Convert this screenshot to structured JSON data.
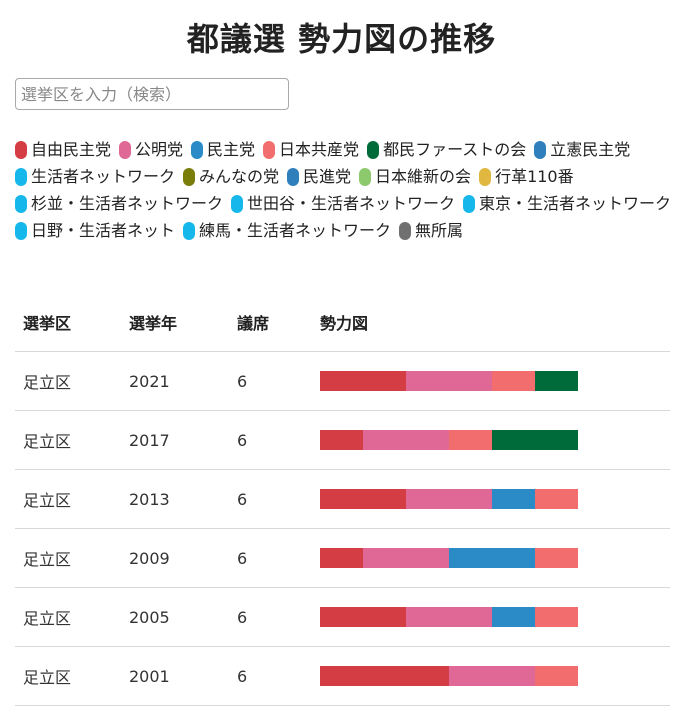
{
  "page": {
    "title": "都議選 勢力図の推移"
  },
  "search": {
    "placeholder": "選挙区を入力（検索）"
  },
  "legend": [
    {
      "name": "自由民主党",
      "color": "#d43d44"
    },
    {
      "name": "公明党",
      "color": "#e06897"
    },
    {
      "name": "民主党",
      "color": "#2a8bc6"
    },
    {
      "name": "日本共産党",
      "color": "#f26d6d"
    },
    {
      "name": "都民ファーストの会",
      "color": "#006b3a"
    },
    {
      "name": "立憲民主党",
      "color": "#2f7fbd"
    },
    {
      "name": "生活者ネットワーク",
      "color": "#16b8ec"
    },
    {
      "name": "みんなの党",
      "color": "#7b7d0a"
    },
    {
      "name": "民進党",
      "color": "#2f7fbd"
    },
    {
      "name": "日本維新の会",
      "color": "#8cc96c"
    },
    {
      "name": "行革110番",
      "color": "#e0b83f"
    },
    {
      "name": "杉並・生活者ネットワーク",
      "color": "#16b8ec"
    },
    {
      "name": "世田谷・生活者ネットワーク",
      "color": "#16b8ec"
    },
    {
      "name": "東京・生活者ネットワーク",
      "color": "#16b8ec"
    },
    {
      "name": "日野・生活者ネット",
      "color": "#16b8ec"
    },
    {
      "name": "練馬・生活者ネットワーク",
      "color": "#16b8ec"
    },
    {
      "name": "無所属",
      "color": "#707070"
    }
  ],
  "table": {
    "headers": {
      "district": "選挙区",
      "year": "選挙年",
      "seats": "議席",
      "chart": "勢力図"
    }
  },
  "chart_data": {
    "type": "table",
    "title": "都議選 勢力図の推移",
    "unit": "議席",
    "rows": [
      {
        "district": "足立区",
        "year": "2021",
        "seats": "6",
        "segments": [
          {
            "party": "自由民主党",
            "seats": 2
          },
          {
            "party": "公明党",
            "seats": 2
          },
          {
            "party": "日本共産党",
            "seats": 1
          },
          {
            "party": "都民ファーストの会",
            "seats": 1
          }
        ]
      },
      {
        "district": "足立区",
        "year": "2017",
        "seats": "6",
        "segments": [
          {
            "party": "自由民主党",
            "seats": 1
          },
          {
            "party": "公明党",
            "seats": 2
          },
          {
            "party": "日本共産党",
            "seats": 1
          },
          {
            "party": "都民ファーストの会",
            "seats": 2
          }
        ]
      },
      {
        "district": "足立区",
        "year": "2013",
        "seats": "6",
        "segments": [
          {
            "party": "自由民主党",
            "seats": 2
          },
          {
            "party": "公明党",
            "seats": 2
          },
          {
            "party": "民主党",
            "seats": 1
          },
          {
            "party": "日本共産党",
            "seats": 1
          }
        ]
      },
      {
        "district": "足立区",
        "year": "2009",
        "seats": "6",
        "segments": [
          {
            "party": "自由民主党",
            "seats": 1
          },
          {
            "party": "公明党",
            "seats": 2
          },
          {
            "party": "民主党",
            "seats": 2
          },
          {
            "party": "日本共産党",
            "seats": 1
          }
        ]
      },
      {
        "district": "足立区",
        "year": "2005",
        "seats": "6",
        "segments": [
          {
            "party": "自由民主党",
            "seats": 2
          },
          {
            "party": "公明党",
            "seats": 2
          },
          {
            "party": "民主党",
            "seats": 1
          },
          {
            "party": "日本共産党",
            "seats": 1
          }
        ]
      },
      {
        "district": "足立区",
        "year": "2001",
        "seats": "6",
        "segments": [
          {
            "party": "自由民主党",
            "seats": 3
          },
          {
            "party": "公明党",
            "seats": 2
          },
          {
            "party": "日本共産党",
            "seats": 1
          }
        ]
      }
    ]
  }
}
